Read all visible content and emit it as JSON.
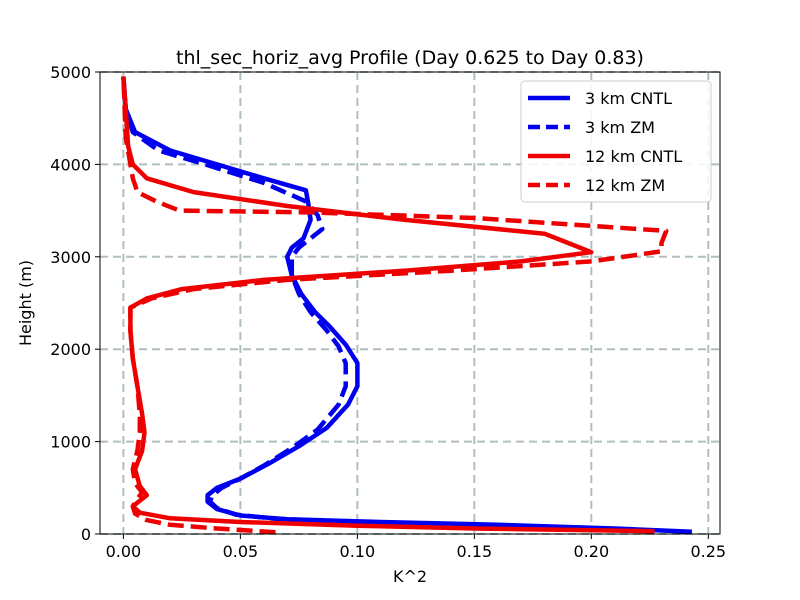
{
  "chart_data": {
    "type": "line",
    "title": "thl_sec_horiz_avg Profile (Day 0.625 to Day 0.83)",
    "xlabel": "K^2",
    "ylabel": "Height (m)",
    "xlim": [
      -0.01,
      0.255
    ],
    "ylim": [
      0,
      5000
    ],
    "xticks": [
      0.0,
      0.05,
      0.1,
      0.15,
      0.2,
      0.25
    ],
    "xtick_labels": [
      "0.00",
      "0.05",
      "0.10",
      "0.15",
      "0.20",
      "0.25"
    ],
    "yticks": [
      0,
      1000,
      2000,
      3000,
      4000,
      5000
    ],
    "ytick_labels": [
      "0",
      "1000",
      "2000",
      "3000",
      "4000",
      "5000"
    ],
    "grid": true,
    "legend_position": "top-right",
    "series": [
      {
        "name": "3 km CNTL",
        "color": "#0000ee",
        "dash": "solid",
        "points": [
          [
            0.243,
            25
          ],
          [
            0.21,
            60
          ],
          [
            0.16,
            100
          ],
          [
            0.11,
            130
          ],
          [
            0.07,
            160
          ],
          [
            0.05,
            200
          ],
          [
            0.04,
            270
          ],
          [
            0.036,
            350
          ],
          [
            0.036,
            420
          ],
          [
            0.04,
            500
          ],
          [
            0.05,
            600
          ],
          [
            0.062,
            760
          ],
          [
            0.075,
            950
          ],
          [
            0.087,
            1150
          ],
          [
            0.096,
            1400
          ],
          [
            0.1,
            1600
          ],
          [
            0.1,
            1850
          ],
          [
            0.095,
            2050
          ],
          [
            0.088,
            2250
          ],
          [
            0.082,
            2400
          ],
          [
            0.076,
            2600
          ],
          [
            0.072,
            2800
          ],
          [
            0.07,
            3000
          ],
          [
            0.072,
            3100
          ],
          [
            0.077,
            3200
          ],
          [
            0.08,
            3400
          ],
          [
            0.079,
            3580
          ],
          [
            0.078,
            3720
          ],
          [
            0.06,
            3850
          ],
          [
            0.04,
            4000
          ],
          [
            0.02,
            4150
          ],
          [
            0.005,
            4350
          ],
          [
            0.001,
            4600
          ],
          [
            0.0,
            4950
          ]
        ]
      },
      {
        "name": "3 km ZM",
        "color": "#0000ee",
        "dash": "dashed",
        "points": [
          [
            0.227,
            30
          ],
          [
            0.18,
            60
          ],
          [
            0.14,
            100
          ],
          [
            0.1,
            130
          ],
          [
            0.065,
            165
          ],
          [
            0.048,
            210
          ],
          [
            0.04,
            280
          ],
          [
            0.037,
            350
          ],
          [
            0.038,
            420
          ],
          [
            0.042,
            500
          ],
          [
            0.05,
            600
          ],
          [
            0.06,
            740
          ],
          [
            0.072,
            930
          ],
          [
            0.083,
            1130
          ],
          [
            0.092,
            1400
          ],
          [
            0.095,
            1600
          ],
          [
            0.095,
            1850
          ],
          [
            0.092,
            2030
          ],
          [
            0.087,
            2200
          ],
          [
            0.08,
            2400
          ],
          [
            0.075,
            2600
          ],
          [
            0.072,
            2800
          ],
          [
            0.072,
            3000
          ],
          [
            0.075,
            3100
          ],
          [
            0.08,
            3200
          ],
          [
            0.085,
            3300
          ],
          [
            0.083,
            3450
          ],
          [
            0.078,
            3600
          ],
          [
            0.06,
            3800
          ],
          [
            0.035,
            4000
          ],
          [
            0.015,
            4150
          ],
          [
            0.004,
            4350
          ],
          [
            0.001,
            4600
          ],
          [
            0.0,
            4950
          ]
        ]
      },
      {
        "name": "12 km CNTL",
        "color": "#ee0000",
        "dash": "solid",
        "points": [
          [
            0.227,
            30
          ],
          [
            0.15,
            60
          ],
          [
            0.1,
            90
          ],
          [
            0.05,
            130
          ],
          [
            0.02,
            170
          ],
          [
            0.007,
            230
          ],
          [
            0.004,
            300
          ],
          [
            0.007,
            360
          ],
          [
            0.01,
            420
          ],
          [
            0.007,
            520
          ],
          [
            0.005,
            700
          ],
          [
            0.008,
            900
          ],
          [
            0.009,
            1100
          ],
          [
            0.008,
            1300
          ],
          [
            0.006,
            1600
          ],
          [
            0.004,
            1900
          ],
          [
            0.003,
            2200
          ],
          [
            0.003,
            2450
          ],
          [
            0.01,
            2550
          ],
          [
            0.025,
            2650
          ],
          [
            0.06,
            2750
          ],
          [
            0.12,
            2850
          ],
          [
            0.17,
            2950
          ],
          [
            0.2,
            3050
          ],
          [
            0.19,
            3150
          ],
          [
            0.18,
            3250
          ],
          [
            0.12,
            3400
          ],
          [
            0.07,
            3550
          ],
          [
            0.03,
            3700
          ],
          [
            0.01,
            3850
          ],
          [
            0.004,
            4000
          ],
          [
            0.002,
            4200
          ],
          [
            0.001,
            4600
          ],
          [
            0.0,
            4950
          ]
        ]
      },
      {
        "name": "12 km ZM",
        "color": "#ee0000",
        "dash": "dashed",
        "points": [
          [
            0.065,
            20
          ],
          [
            0.04,
            60
          ],
          [
            0.02,
            100
          ],
          [
            0.01,
            150
          ],
          [
            0.005,
            220
          ],
          [
            0.004,
            300
          ],
          [
            0.006,
            380
          ],
          [
            0.008,
            450
          ],
          [
            0.005,
            550
          ],
          [
            0.004,
            700
          ],
          [
            0.006,
            900
          ],
          [
            0.007,
            1100
          ],
          [
            0.007,
            1300
          ],
          [
            0.006,
            1600
          ],
          [
            0.004,
            1900
          ],
          [
            0.003,
            2200
          ],
          [
            0.003,
            2450
          ],
          [
            0.012,
            2550
          ],
          [
            0.03,
            2650
          ],
          [
            0.07,
            2750
          ],
          [
            0.14,
            2850
          ],
          [
            0.2,
            2950
          ],
          [
            0.23,
            3060
          ],
          [
            0.23,
            3150
          ],
          [
            0.232,
            3280
          ],
          [
            0.15,
            3420
          ],
          [
            0.08,
            3480
          ],
          [
            0.024,
            3500
          ],
          [
            0.014,
            3600
          ],
          [
            0.006,
            3700
          ],
          [
            0.004,
            3850
          ],
          [
            0.003,
            4000
          ],
          [
            0.001,
            4300
          ],
          [
            0.0,
            4950
          ]
        ]
      }
    ]
  }
}
